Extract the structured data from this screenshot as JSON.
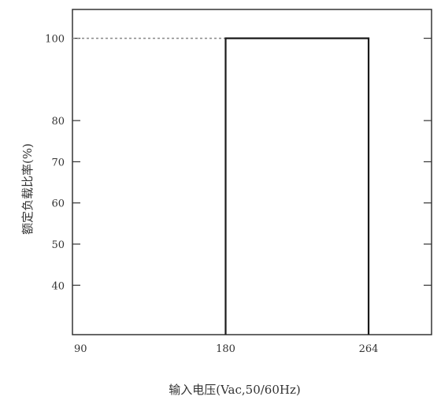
{
  "chart_data": {
    "type": "line",
    "xlabel": "输入电压(Vac,50/60Hz)",
    "ylabel": "额定负载比率(%)",
    "x_ticks": [
      90,
      180,
      264
    ],
    "y_ticks": [
      40,
      50,
      60,
      70,
      80,
      100
    ],
    "xlim": [
      90,
      301
    ],
    "ylim": [
      28,
      107
    ],
    "series": [
      {
        "x": [
          180,
          180,
          264,
          264
        ],
        "y": [
          28,
          100,
          100,
          28
        ]
      }
    ],
    "reference_line": {
      "y": 100,
      "x_from": 90,
      "x_to": 180,
      "style": "dashed"
    },
    "grid": false,
    "colors": {
      "line": "#1a1a1a",
      "frame": "#333333",
      "dashed": "#888888"
    }
  }
}
